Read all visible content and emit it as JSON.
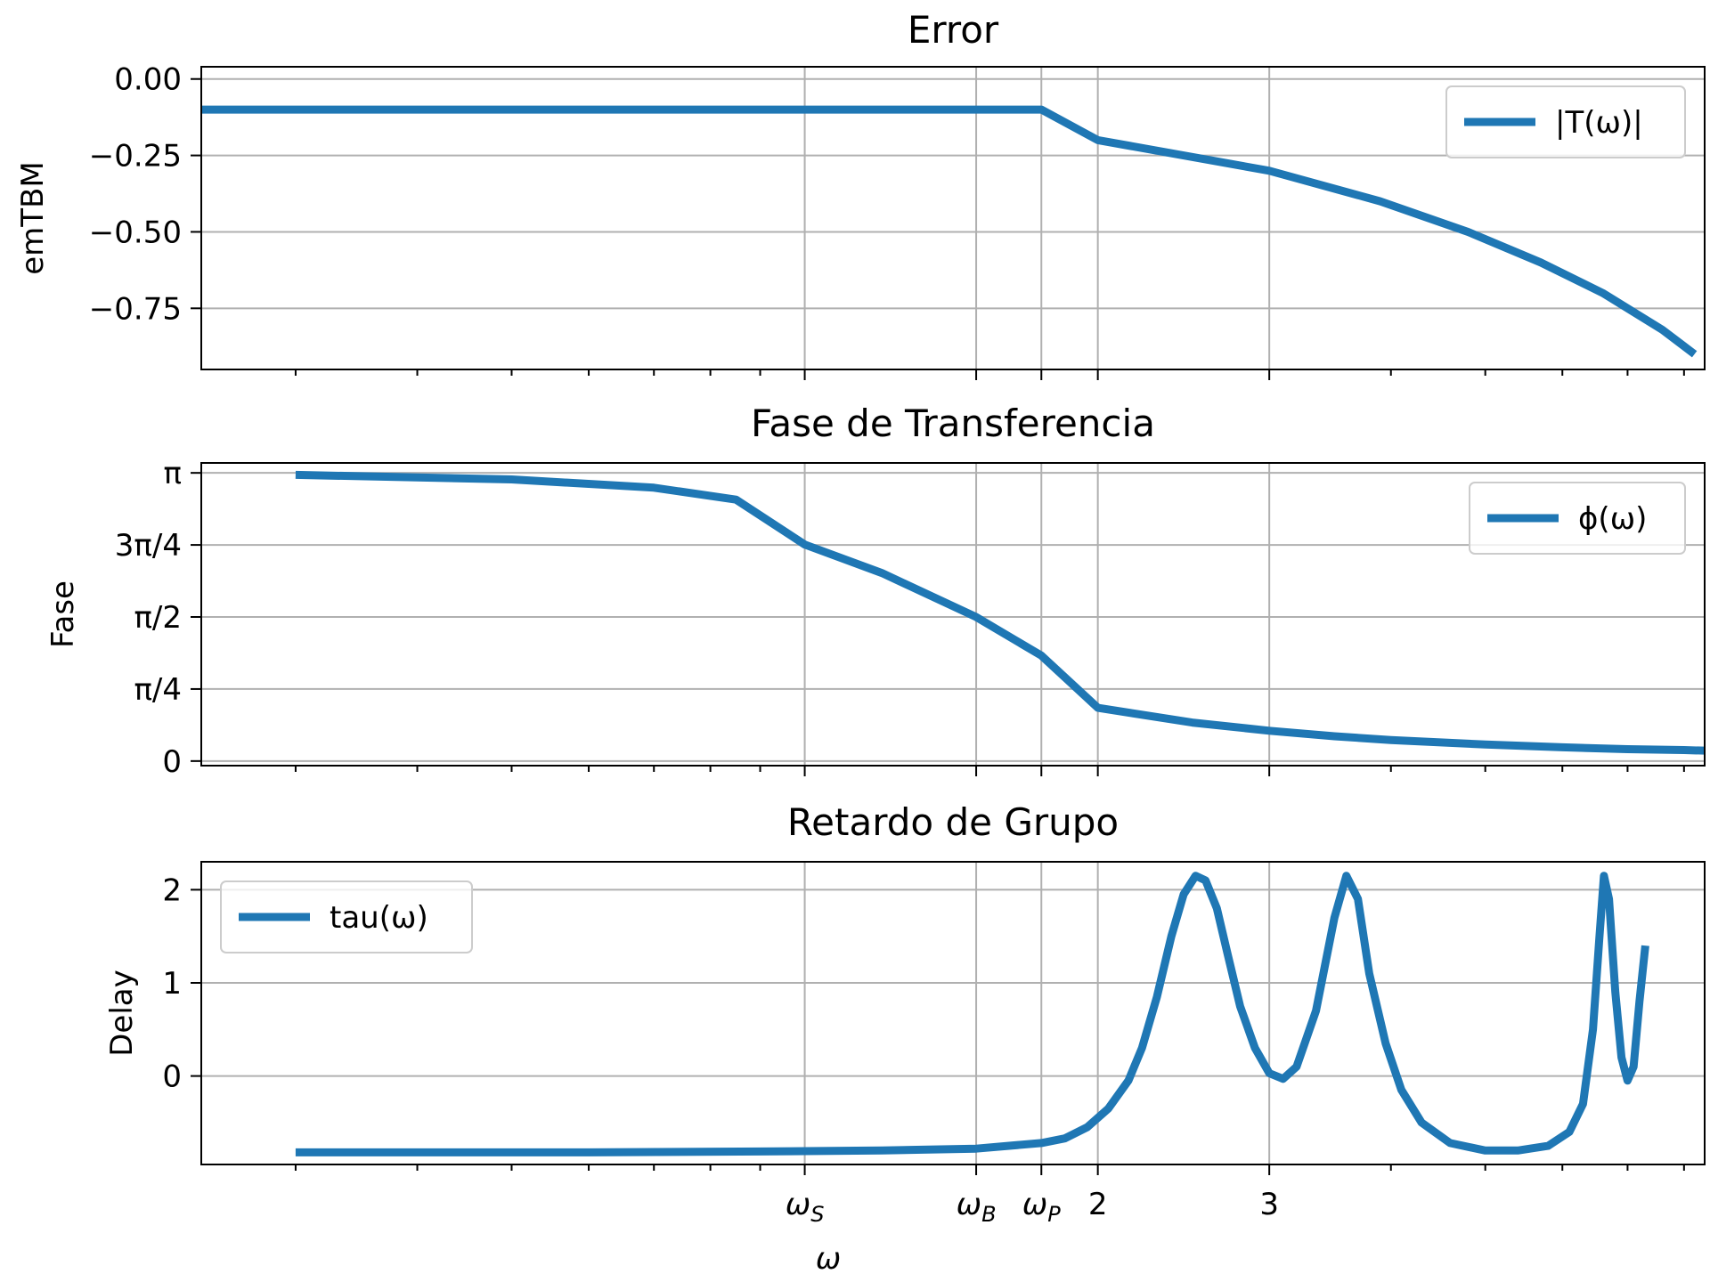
{
  "colors": {
    "series": "#1f77b4",
    "grid": "#b0b0b0"
  },
  "x_axis": {
    "scale": "log",
    "label": "ω",
    "special_ticks": [
      {
        "value": 1.0,
        "label": "ωS"
      },
      {
        "value": 1.5,
        "label": "ωB"
      },
      {
        "value": 1.75,
        "label": "ωP"
      },
      {
        "value": 2,
        "label": "2"
      },
      {
        "value": 3,
        "label": "3"
      }
    ]
  },
  "chart_data": [
    {
      "type": "line",
      "title": "Error",
      "ylabel": "emTBM",
      "xlim": [
        0.24,
        8.4
      ],
      "ylim": [
        -0.95,
        0.04
      ],
      "yticks": [
        {
          "value": 0,
          "label": "0.00"
        },
        {
          "value": -0.25,
          "label": "−0.25"
        },
        {
          "value": -0.5,
          "label": "−0.50"
        },
        {
          "value": -0.75,
          "label": "−0.75"
        }
      ],
      "grid": true,
      "legend_position": "top-right",
      "series": [
        {
          "name": "|T(ω)|",
          "points": [
            [
              0.24,
              -0.1
            ],
            [
              1.75,
              -0.1
            ],
            [
              2.0,
              -0.2
            ],
            [
              3.0,
              -0.3
            ],
            [
              3.9,
              -0.4
            ],
            [
              4.8,
              -0.5
            ],
            [
              5.7,
              -0.6
            ],
            [
              6.6,
              -0.7
            ],
            [
              7.6,
              -0.82
            ],
            [
              8.2,
              -0.9
            ]
          ]
        }
      ]
    },
    {
      "type": "line",
      "title": "Fase de Transferencia",
      "ylabel": "Fase",
      "xlim": [
        0.24,
        8.4
      ],
      "ylim": [
        -0.05,
        3.25
      ],
      "yticks": [
        {
          "value": 3.14159,
          "label": "π"
        },
        {
          "value": 2.35619,
          "label": "3π/4"
        },
        {
          "value": 1.5708,
          "label": "π/2"
        },
        {
          "value": 0.7854,
          "label": "π/4"
        },
        {
          "value": 0,
          "label": "0"
        }
      ],
      "grid": true,
      "legend_position": "top-right",
      "series": [
        {
          "name": "ϕ(ω)",
          "points": [
            [
              0.3,
              3.12
            ],
            [
              0.5,
              3.07
            ],
            [
              0.7,
              2.98
            ],
            [
              0.85,
              2.85
            ],
            [
              1.0,
              2.36
            ],
            [
              1.2,
              2.05
            ],
            [
              1.5,
              1.57
            ],
            [
              1.75,
              1.15
            ],
            [
              2.0,
              0.58
            ],
            [
              2.5,
              0.42
            ],
            [
              3.0,
              0.33
            ],
            [
              3.5,
              0.27
            ],
            [
              4.0,
              0.23
            ],
            [
              5.0,
              0.18
            ],
            [
              6.0,
              0.15
            ],
            [
              7.0,
              0.13
            ],
            [
              8.0,
              0.12
            ],
            [
              8.6,
              0.11
            ]
          ]
        }
      ]
    },
    {
      "type": "line",
      "title": "Retardo de Grupo",
      "ylabel": "Delay",
      "xlim": [
        0.24,
        8.4
      ],
      "ylim": [
        -0.95,
        2.3
      ],
      "yticks": [
        {
          "value": 2,
          "label": "2"
        },
        {
          "value": 1,
          "label": "1"
        },
        {
          "value": 0,
          "label": "0"
        }
      ],
      "grid": true,
      "legend_position": "top-left",
      "series": [
        {
          "name": "tau(ω)",
          "points": [
            [
              0.3,
              -0.82
            ],
            [
              0.6,
              -0.82
            ],
            [
              0.9,
              -0.81
            ],
            [
              1.2,
              -0.8
            ],
            [
              1.5,
              -0.78
            ],
            [
              1.75,
              -0.72
            ],
            [
              1.85,
              -0.67
            ],
            [
              1.95,
              -0.55
            ],
            [
              2.05,
              -0.35
            ],
            [
              2.15,
              -0.05
            ],
            [
              2.22,
              0.3
            ],
            [
              2.3,
              0.85
            ],
            [
              2.38,
              1.5
            ],
            [
              2.45,
              1.95
            ],
            [
              2.52,
              2.15
            ],
            [
              2.58,
              2.1
            ],
            [
              2.65,
              1.8
            ],
            [
              2.72,
              1.3
            ],
            [
              2.8,
              0.75
            ],
            [
              2.9,
              0.3
            ],
            [
              3.0,
              0.03
            ],
            [
              3.1,
              -0.03
            ],
            [
              3.2,
              0.1
            ],
            [
              3.35,
              0.7
            ],
            [
              3.5,
              1.7
            ],
            [
              3.6,
              2.15
            ],
            [
              3.7,
              1.9
            ],
            [
              3.8,
              1.1
            ],
            [
              3.95,
              0.35
            ],
            [
              4.1,
              -0.15
            ],
            [
              4.3,
              -0.5
            ],
            [
              4.6,
              -0.72
            ],
            [
              5.0,
              -0.8
            ],
            [
              5.4,
              -0.8
            ],
            [
              5.8,
              -0.75
            ],
            [
              6.1,
              -0.6
            ],
            [
              6.3,
              -0.3
            ],
            [
              6.45,
              0.5
            ],
            [
              6.55,
              1.5
            ],
            [
              6.62,
              2.15
            ],
            [
              6.7,
              1.9
            ],
            [
              6.8,
              0.9
            ],
            [
              6.9,
              0.2
            ],
            [
              7.0,
              -0.05
            ],
            [
              7.1,
              0.1
            ],
            [
              7.2,
              0.8
            ],
            [
              7.3,
              1.4
            ]
          ]
        }
      ]
    }
  ]
}
